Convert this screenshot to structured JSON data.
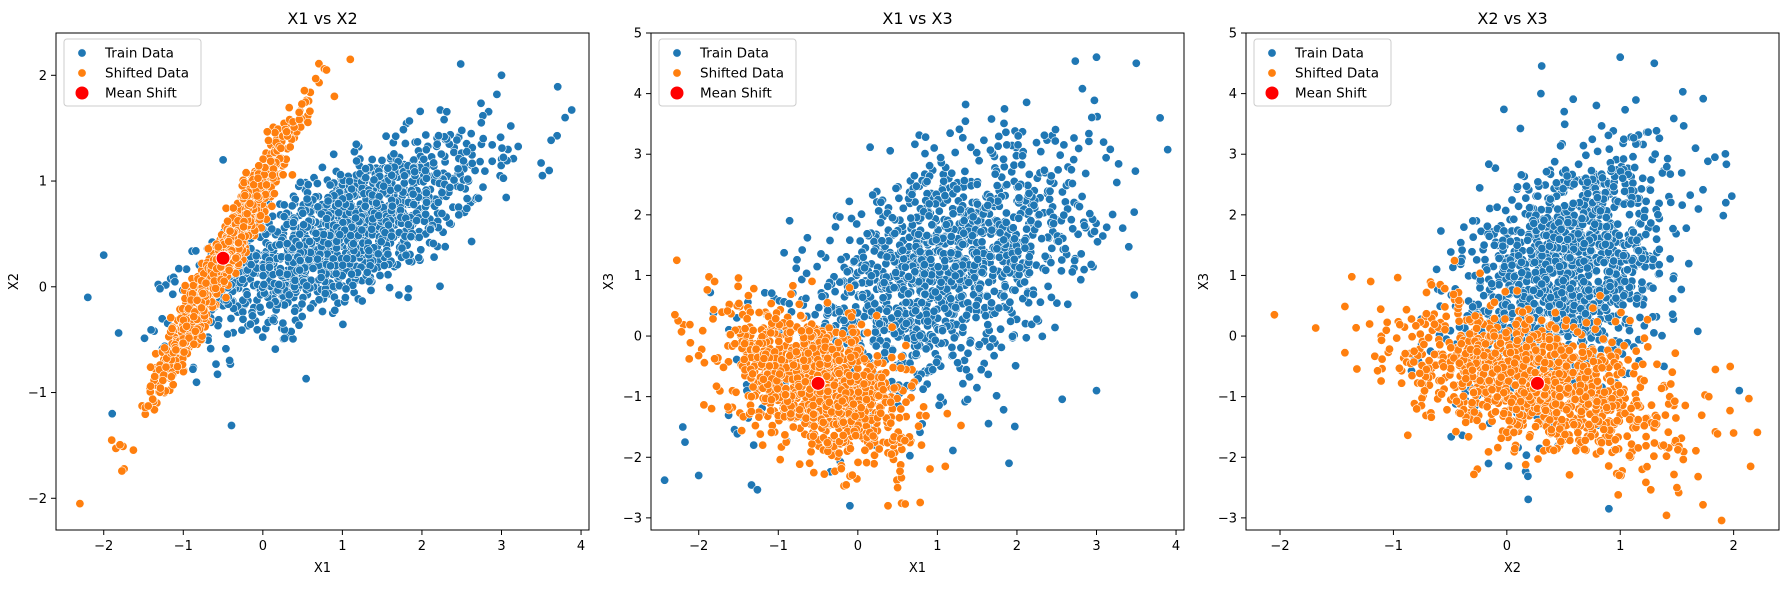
{
  "figure": {
    "background": "#ffffff",
    "colors": {
      "train": "#1f77b4",
      "shifted": "#ff7f0e",
      "mean": "#ff0000",
      "point_edge": "#ffffff"
    }
  },
  "chart_data": [
    {
      "type": "scatter",
      "title": "X1 vs X2",
      "xlabel": "X1",
      "ylabel": "X2",
      "xlim": [
        -2.6,
        4.1
      ],
      "ylim": [
        -2.3,
        2.4
      ],
      "xticks": [
        -2,
        -1,
        0,
        1,
        2,
        3,
        4
      ],
      "yticks": [
        -2,
        -1,
        0,
        1,
        2
      ],
      "grid": false,
      "legend": {
        "placement": "top-left",
        "entries": [
          "Train Data",
          "Shifted Data",
          "Mean Shift"
        ]
      },
      "series": [
        {
          "name": "Train Data",
          "color": "#1f77b4",
          "mean": [
            1.0,
            0.5
          ],
          "std": [
            0.9,
            0.45
          ],
          "corr": 0.72,
          "n": 1400,
          "extremes": [
            [
              -2.2,
              -0.1
            ],
            [
              -2.0,
              0.3
            ],
            [
              3.8,
              1.6
            ],
            [
              3.6,
              1.1
            ],
            [
              3.0,
              2.0
            ],
            [
              -0.4,
              -0.3
            ],
            [
              -0.5,
              1.2
            ],
            [
              1.8,
              0.3
            ]
          ]
        },
        {
          "name": "Shifted Data",
          "color": "#ff7f0e",
          "mean": [
            -0.5,
            0.27
          ],
          "std": [
            0.42,
            0.6
          ],
          "corr": 0.97,
          "n": 1100,
          "extremes": [
            [
              -2.3,
              -2.05
            ],
            [
              1.1,
              2.15
            ],
            [
              -1.9,
              -1.45
            ],
            [
              0.8,
              2.05
            ],
            [
              0.9,
              1.8
            ]
          ]
        }
      ],
      "mean_shift": {
        "name": "Mean Shift",
        "x": -0.5,
        "y": 0.27
      }
    },
    {
      "type": "scatter",
      "title": "X1 vs X3",
      "xlabel": "X1",
      "ylabel": "X3",
      "xlim": [
        -2.6,
        4.1
      ],
      "ylim": [
        -3.2,
        5.0
      ],
      "xticks": [
        -2,
        -1,
        0,
        1,
        2,
        3,
        4
      ],
      "yticks": [
        -3,
        -2,
        -1,
        0,
        1,
        2,
        3,
        4,
        5
      ],
      "grid": false,
      "legend": {
        "placement": "top-left",
        "entries": [
          "Train Data",
          "Shifted Data",
          "Mean Shift"
        ]
      },
      "series": [
        {
          "name": "Train Data",
          "color": "#1f77b4",
          "mean": [
            1.0,
            1.0
          ],
          "std": [
            0.95,
            1.05
          ],
          "corr": 0.55,
          "n": 1400,
          "extremes": [
            [
              -2.0,
              -2.3
            ],
            [
              -0.1,
              -2.8
            ],
            [
              3.8,
              3.6
            ],
            [
              3.0,
              4.6
            ],
            [
              1.9,
              -2.1
            ],
            [
              3.0,
              -0.9
            ],
            [
              -2.2,
              -1.5
            ],
            [
              3.5,
              4.5
            ]
          ]
        },
        {
          "name": "Shifted Data",
          "color": "#ff7f0e",
          "mean": [
            -0.5,
            -0.78
          ],
          "std": [
            0.55,
            0.6
          ],
          "corr": -0.45,
          "n": 1100,
          "extremes": [
            [
              -2.3,
              0.35
            ],
            [
              -1.8,
              0.9
            ],
            [
              1.1,
              -2.15
            ],
            [
              0.5,
              -2.5
            ],
            [
              0.8,
              -1.8
            ]
          ]
        }
      ],
      "mean_shift": {
        "name": "Mean Shift",
        "x": -0.5,
        "y": -0.78
      }
    },
    {
      "type": "scatter",
      "title": "X2 vs X3",
      "xlabel": "X2",
      "ylabel": "X3",
      "xlim": [
        -2.3,
        2.4
      ],
      "ylim": [
        -3.2,
        5.0
      ],
      "xticks": [
        -2,
        -1,
        0,
        1,
        2
      ],
      "yticks": [
        -3,
        -2,
        -1,
        0,
        1,
        2,
        3,
        4,
        5
      ],
      "grid": false,
      "legend": {
        "placement": "top-left",
        "entries": [
          "Train Data",
          "Shifted Data",
          "Mean Shift"
        ]
      },
      "series": [
        {
          "name": "Train Data",
          "color": "#1f77b4",
          "mean": [
            0.5,
            1.0
          ],
          "std": [
            0.45,
            1.05
          ],
          "corr": 0.4,
          "n": 1400,
          "extremes": [
            [
              1.0,
              4.6
            ],
            [
              1.3,
              4.5
            ],
            [
              0.9,
              -2.85
            ],
            [
              2.05,
              -0.9
            ],
            [
              -0.2,
              1.5
            ],
            [
              -0.3,
              1.9
            ],
            [
              0.3,
              4.0
            ]
          ]
        },
        {
          "name": "Shifted Data",
          "color": "#ff7f0e",
          "mean": [
            0.27,
            -0.78
          ],
          "std": [
            0.6,
            0.6
          ],
          "corr": -0.45,
          "n": 1100,
          "extremes": [
            [
              -2.05,
              0.35
            ],
            [
              2.15,
              -2.15
            ],
            [
              -1.2,
              0.9
            ],
            [
              2.0,
              -1.6
            ],
            [
              1.5,
              -2.5
            ]
          ]
        }
      ],
      "mean_shift": {
        "name": "Mean Shift",
        "x": 0.27,
        "y": -0.78
      }
    }
  ]
}
